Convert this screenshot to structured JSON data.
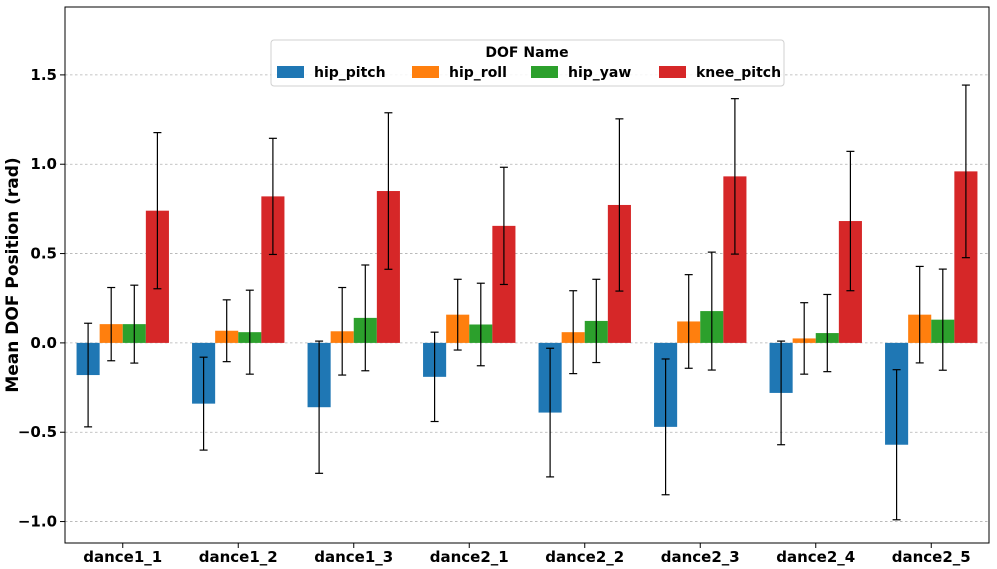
{
  "chart_data": {
    "type": "bar",
    "title": "",
    "xlabel": "",
    "ylabel": "Mean DOF Position (rad)",
    "ylim": [
      -1.12,
      1.88
    ],
    "yticks": [
      -1.0,
      -0.5,
      0.0,
      0.5,
      1.0,
      1.5
    ],
    "ytick_labels": [
      "−1.0",
      "−0.5",
      "0.0",
      "0.5",
      "1.0",
      "1.5"
    ],
    "grid": "horizontal dotted",
    "categories": [
      "dance1_1",
      "dance1_2",
      "dance1_3",
      "dance2_1",
      "dance2_2",
      "dance2_3",
      "dance2_4",
      "dance2_5"
    ],
    "legend": {
      "title": "DOF Name",
      "position": "upper-center"
    },
    "series": [
      {
        "name": "hip_pitch",
        "color": "#1f77b4",
        "values": [
          -0.18,
          -0.34,
          -0.36,
          -0.19,
          -0.39,
          -0.47,
          -0.28,
          -0.57
        ],
        "errors": [
          0.29,
          0.26,
          0.37,
          0.25,
          0.36,
          0.38,
          0.29,
          0.42
        ]
      },
      {
        "name": "hip_roll",
        "color": "#ff7f0e",
        "values": [
          0.105,
          0.068,
          0.065,
          0.158,
          0.06,
          0.12,
          0.025,
          0.158
        ],
        "errors": [
          0.205,
          0.173,
          0.245,
          0.198,
          0.232,
          0.262,
          0.2,
          0.27
        ]
      },
      {
        "name": "hip_yaw",
        "color": "#2ca02c",
        "values": [
          0.105,
          0.06,
          0.14,
          0.103,
          0.123,
          0.178,
          0.055,
          0.13
        ],
        "errors": [
          0.218,
          0.235,
          0.296,
          0.231,
          0.233,
          0.33,
          0.216,
          0.283
        ]
      },
      {
        "name": "knee_pitch",
        "color": "#d62728",
        "values": [
          0.74,
          0.82,
          0.85,
          0.655,
          0.772,
          0.932,
          0.682,
          0.96
        ],
        "errors": [
          0.437,
          0.325,
          0.438,
          0.328,
          0.482,
          0.435,
          0.39,
          0.483
        ]
      }
    ]
  }
}
